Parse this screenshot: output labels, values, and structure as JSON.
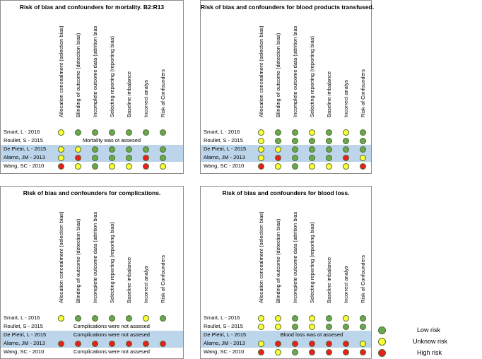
{
  "colors": {
    "low": "#6aa84f",
    "unknown": "#ffff33",
    "high": "#ee1c1c",
    "band": "#bcd5ea"
  },
  "chart_data": [
    {
      "type": "table",
      "title": "Risk of bias and confounders for mortality. B2:R13",
      "criteria": [
        "Allocation concealment (selection bias)",
        "Blinding of outcome (detection bias)",
        "Incomplete outcome data (attrition bias",
        "Selecting reporting (reporting bias)",
        "Baseline imbalance",
        "Incorrect analys",
        "Risk of Confounders"
      ],
      "studies": [
        "Smart, L - 2016",
        "Roullet, S - 2015",
        "De Pietri, L - 2015",
        "Alamo, JM - 2013",
        "Wang, SC - 2010"
      ],
      "ratings": [
        [
          "unknown",
          "low",
          "low",
          "low",
          "low",
          "low",
          "low"
        ],
        null,
        [
          "unknown",
          "unknown",
          "low",
          "low",
          "low",
          "low",
          "low"
        ],
        [
          "unknown",
          "high",
          "low",
          "low",
          "low",
          "high",
          "low"
        ],
        [
          "high",
          "unknown",
          "low",
          "unknown",
          "unknown",
          "high",
          "unknown"
        ]
      ],
      "notes": [
        null,
        "Mortality was ot assesed",
        null,
        null,
        null
      ]
    },
    {
      "type": "table",
      "title": "Risk of bias and confounders for blood products transfused.",
      "criteria": [
        "Allocation concealment (selection bias)",
        "Blinding of outcome (detection bias)",
        "Incomplete outcome data (attrition bias",
        "Selecting reporting (reporting bias)",
        "Baseline imbalance",
        "Incorrect analys",
        "Risk of Confounders"
      ],
      "studies": [
        "Smart, L - 2016",
        "Roullet, S - 2015",
        "De Pietri, L - 2015",
        "Alamo, JM - 2013",
        "Wang, SC - 2010"
      ],
      "ratings": [
        [
          "unknown",
          "low",
          "low",
          "unknown",
          "low",
          "unknown",
          "low"
        ],
        [
          "unknown",
          "low",
          "low",
          "low",
          "low",
          "low",
          "low"
        ],
        [
          "unknown",
          "unknown",
          "low",
          "low",
          "low",
          "low",
          "low"
        ],
        [
          "unknown",
          "high",
          "low",
          "low",
          "low",
          "high",
          "unknown"
        ],
        [
          "high",
          "unknown",
          "low",
          "unknown",
          "unknown",
          "unknown",
          "high"
        ]
      ],
      "notes": [
        null,
        null,
        null,
        null,
        null
      ]
    },
    {
      "type": "table",
      "title": "Risk of bias and confounders for complications.",
      "criteria": [
        "Allocation concealment (selection bias)",
        "Blinding of outcome (detection bias)",
        "Incomplete outcome data (attrition bias",
        "Selecting reporting (reporting bias)",
        "Baseline imbalance",
        "Incorrect analys",
        "Risk of Confounders"
      ],
      "studies": [
        "Smart, L - 2016",
        "Roullet, S - 2015",
        "De Pietri, L - 2015",
        "Alamo, JM - 2013",
        "Wang, SC - 2010"
      ],
      "ratings": [
        [
          "unknown",
          "low",
          "low",
          "low",
          "low",
          "unknown",
          "low"
        ],
        null,
        null,
        [
          "high",
          "high",
          "high",
          "high",
          "high",
          "high",
          "high"
        ],
        null
      ],
      "notes": [
        null,
        "Complications were not assesed",
        "Complications were not assesed",
        null,
        "Complications were not assesed"
      ]
    },
    {
      "type": "table",
      "title": "Risk of bias and confounders for blood loss.",
      "criteria": [
        "Allocation concealment (selection bias)",
        "Blinding of outcome (detection bias)",
        "Incomplete outcome data (attrition bias",
        "Selecting reporting (reporting bias)",
        "Baseline imbalance",
        "Incorrect analys",
        "Risk of Confounders"
      ],
      "studies": [
        "Smart, L - 2016",
        "Roullet, S - 2015",
        "De Pietri, L - 2015",
        "Alamo, JM - 2013",
        "Wang, SC - 2010"
      ],
      "ratings": [
        [
          "unknown",
          "unknown",
          "low",
          "unknown",
          "low",
          "unknown",
          "low"
        ],
        [
          "unknown",
          "unknown",
          "low",
          "unknown",
          "low",
          "low",
          "low"
        ],
        null,
        [
          "unknown",
          "high",
          "high",
          "high",
          "high",
          "high",
          "unknown"
        ],
        [
          "high",
          "unknown",
          "low",
          "high",
          "high",
          "high",
          "high"
        ]
      ],
      "notes": [
        null,
        null,
        "Blood loss was ot assesed",
        null,
        null
      ]
    }
  ],
  "legend": [
    {
      "key": "low",
      "label": "Low risk"
    },
    {
      "key": "unknown",
      "label": "Unknow risk"
    },
    {
      "key": "high",
      "label": "High risk"
    }
  ]
}
